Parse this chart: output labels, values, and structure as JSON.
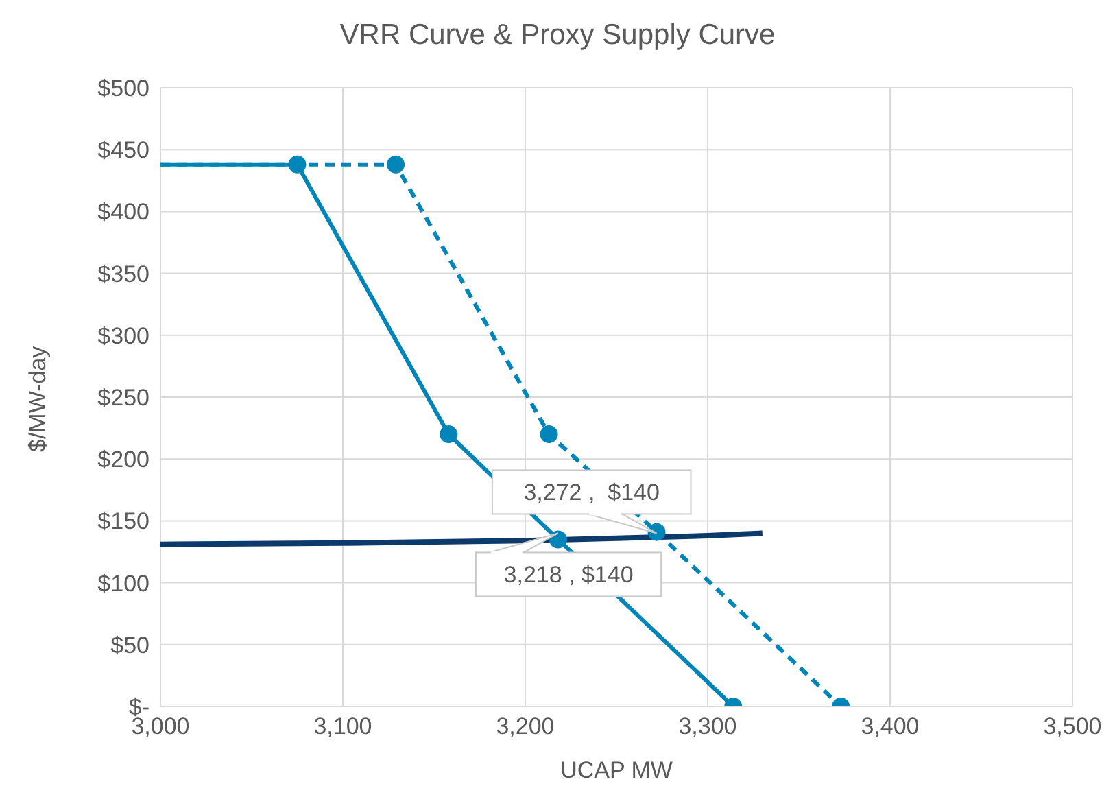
{
  "chart_data": {
    "type": "line",
    "title": "VRR Curve & Proxy Supply Curve",
    "xlabel": "UCAP MW",
    "ylabel": "$/MW-day",
    "xlim": [
      3000,
      3500
    ],
    "xticks": [
      {
        "value": 3000,
        "label": "3,000"
      },
      {
        "value": 3100,
        "label": "3,100"
      },
      {
        "value": 3200,
        "label": "3,200"
      },
      {
        "value": 3300,
        "label": "3,300"
      },
      {
        "value": 3400,
        "label": "3,400"
      },
      {
        "value": 3500,
        "label": "3,500"
      }
    ],
    "ylim": [
      0,
      500
    ],
    "yticks": [
      {
        "value": 0,
        "label": "$-"
      },
      {
        "value": 50,
        "label": "$50"
      },
      {
        "value": 100,
        "label": "$100"
      },
      {
        "value": 150,
        "label": "$150"
      },
      {
        "value": 200,
        "label": "$200"
      },
      {
        "value": 250,
        "label": "$250"
      },
      {
        "value": 300,
        "label": "$300"
      },
      {
        "value": 350,
        "label": "$350"
      },
      {
        "value": 400,
        "label": "$400"
      },
      {
        "value": 450,
        "label": "$450"
      },
      {
        "value": 500,
        "label": "$500"
      }
    ],
    "grid": true,
    "legend": false,
    "series": [
      {
        "color": "#0085b8",
        "marker": "circle",
        "line_style": "solid",
        "x": [
          3000,
          3075,
          3158,
          3218,
          3314
        ],
        "values": [
          438,
          438,
          220,
          135,
          0
        ]
      },
      {
        "color": "#0085b8",
        "marker": "circle",
        "line_style": "dashed",
        "x": [
          3000,
          3129,
          3213,
          3272,
          3373
        ],
        "values": [
          438,
          438,
          220,
          141,
          0
        ]
      },
      {
        "color": "#0b3a6b",
        "marker": "none",
        "line_style": "solid",
        "x": [
          3000,
          3100,
          3200,
          3250,
          3300,
          3330
        ],
        "values": [
          131,
          132,
          134,
          136,
          138,
          140
        ]
      }
    ],
    "annotations": [
      {
        "text": "3,272 ,  $140",
        "x": 3272,
        "y": 140
      },
      {
        "text": "3,218 , $140",
        "x": 3218,
        "y": 140
      }
    ]
  }
}
